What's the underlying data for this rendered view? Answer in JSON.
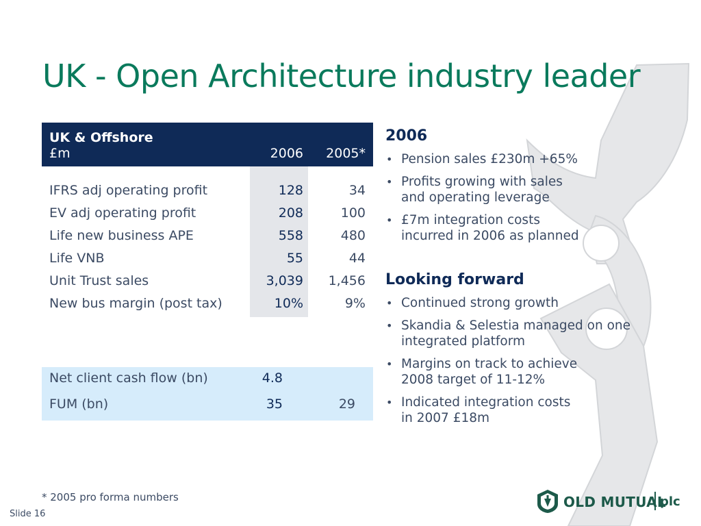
{
  "title": "UK - Open Architecture industry leader",
  "table": {
    "header_title": "UK & Offshore",
    "header_unit": "£m",
    "col_2006": "2006",
    "col_2005": "2005*",
    "rows": [
      {
        "label": "IFRS adj operating profit",
        "v2006": "128",
        "v2005": "34"
      },
      {
        "label": "EV adj operating profit",
        "v2006": "208",
        "v2005": "100"
      },
      {
        "label": "Life new business APE",
        "v2006": "558",
        "v2005": "480"
      },
      {
        "label": "Life VNB",
        "v2006": "55",
        "v2005": "44"
      },
      {
        "label": "Unit Trust sales",
        "v2006": "3,039",
        "v2005": "1,456"
      },
      {
        "label": "New bus margin (post tax)",
        "v2006": "10%",
        "v2005": "9%"
      }
    ],
    "cash_rows": [
      {
        "label": "Net client cash flow (bn)",
        "v2006": "4.8",
        "v2005": ""
      },
      {
        "label": "FUM (bn)",
        "v2006": "35",
        "v2005": "29"
      }
    ]
  },
  "sections": [
    {
      "heading": "2006",
      "bullets": [
        [
          "Pension sales £230m +65%"
        ],
        [
          "Profits growing with sales",
          "and operating leverage"
        ],
        [
          "£7m integration costs",
          "incurred in 2006 as planned"
        ]
      ]
    },
    {
      "heading": "Looking forward",
      "bullets": [
        [
          "Continued strong growth"
        ],
        [
          "Skandia & Selestia managed on one",
          "integrated platform"
        ],
        [
          "Margins on track to achieve",
          "2008 target of 11-12%"
        ],
        [
          "Indicated integration costs",
          "in 2007 £18m"
        ]
      ]
    }
  ],
  "bullet_glyph": "•",
  "footnote": "* 2005 pro forma numbers",
  "slide_label": "Slide 16",
  "logo": {
    "name": "OLD MUTUAL",
    "suffix": "plc"
  },
  "colors": {
    "title": "#0a7a5c",
    "header_bg": "#0f2a57",
    "highlight_col": "#e4e6ea",
    "cash_bg": "#d6ecfb",
    "logo": "#1d5a4a"
  }
}
